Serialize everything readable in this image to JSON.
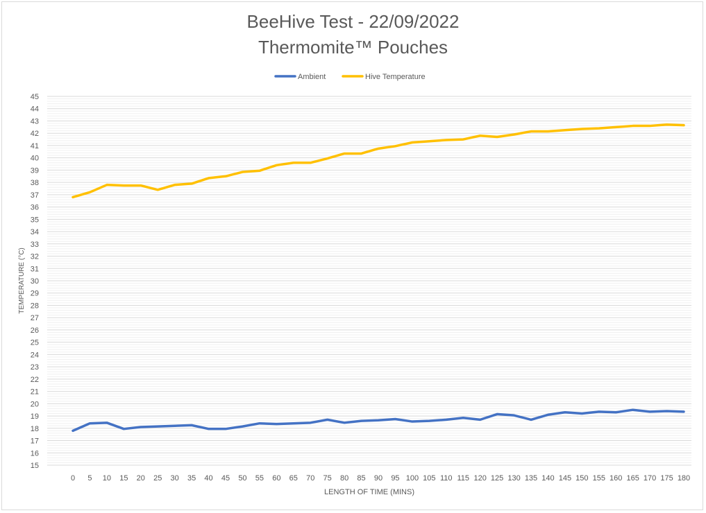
{
  "chart_data": {
    "type": "line",
    "title": "BeeHive Test - 22/09/2022",
    "subtitle": "Thermomite™ Pouches",
    "xlabel": "LENGTH OF TIME (MINS)",
    "ylabel": "TEMPERATURE (°C)",
    "ylim": [
      15,
      45
    ],
    "yticks": [
      15,
      16,
      17,
      18,
      19,
      20,
      21,
      22,
      23,
      24,
      25,
      26,
      27,
      28,
      29,
      30,
      31,
      32,
      33,
      34,
      35,
      36,
      37,
      38,
      39,
      40,
      41,
      42,
      43,
      44,
      45
    ],
    "grid": true,
    "legend": "top",
    "x": [
      0,
      5,
      10,
      15,
      20,
      25,
      30,
      35,
      40,
      45,
      50,
      55,
      60,
      65,
      70,
      75,
      80,
      85,
      90,
      95,
      100,
      105,
      110,
      115,
      120,
      125,
      130,
      135,
      140,
      145,
      150,
      155,
      160,
      165,
      170,
      175,
      180
    ],
    "series": [
      {
        "name": "Ambient",
        "color": "#4472c4",
        "values": [
          17.8,
          18.4,
          18.45,
          17.95,
          18.1,
          18.15,
          18.2,
          18.25,
          17.95,
          17.95,
          18.15,
          18.4,
          18.35,
          18.4,
          18.45,
          18.7,
          18.45,
          18.6,
          18.65,
          18.75,
          18.55,
          18.6,
          18.7,
          18.85,
          18.7,
          19.15,
          19.05,
          18.7,
          19.1,
          19.3,
          19.2,
          19.35,
          19.3,
          19.5,
          19.35,
          19.4,
          19.35
        ]
      },
      {
        "name": "Hive Temperature",
        "color": "#ffc000",
        "values": [
          36.8,
          37.2,
          37.8,
          37.75,
          37.75,
          37.4,
          37.8,
          37.9,
          38.35,
          38.5,
          38.85,
          38.95,
          39.4,
          39.6,
          39.6,
          39.95,
          40.35,
          40.35,
          40.75,
          40.95,
          41.25,
          41.35,
          41.45,
          41.5,
          41.8,
          41.7,
          41.9,
          42.15,
          42.15,
          42.25,
          42.35,
          42.4,
          42.5,
          42.6,
          42.6,
          42.7,
          42.65
        ]
      }
    ]
  }
}
